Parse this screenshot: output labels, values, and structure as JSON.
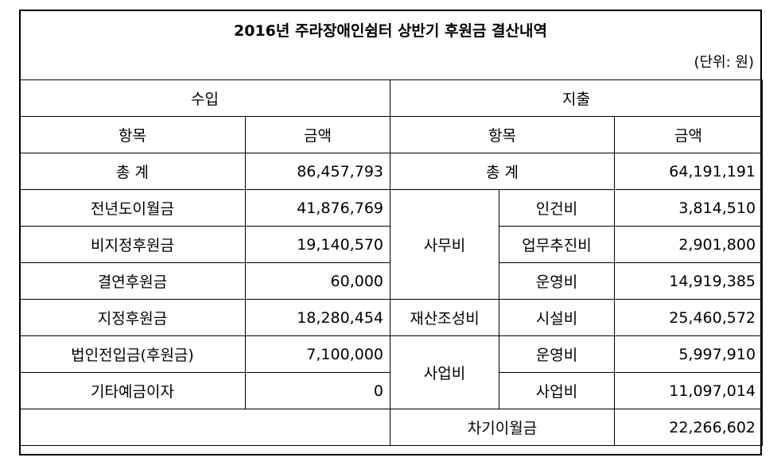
{
  "title": "2016년 주라장애인쉼터 상반기 후원금 결산내역",
  "unit": "(단위: 원)",
  "income_header": "수입",
  "expense_header": "지출",
  "col_item": "항목",
  "col_amount": "금액",
  "income": {
    "total_label": "총 계",
    "total_value": "86,457,793",
    "rows": [
      {
        "label": "전년도이월금",
        "value": "41,876,769"
      },
      {
        "label": "비지정후원금",
        "value": "19,140,570"
      },
      {
        "label": "결연후원금",
        "value": "60,000"
      },
      {
        "label": "지정후원금",
        "value": "18,280,454"
      },
      {
        "label": "법인전입금(후원금)",
        "value": "7,100,000"
      },
      {
        "label": "기타예금이자",
        "value": "0"
      }
    ]
  },
  "expense": {
    "total_label": "총 계",
    "total_value": "64,191,191",
    "groups": [
      {
        "name": "사무비",
        "items": [
          {
            "label": "인건비",
            "value": "3,814,510"
          },
          {
            "label": "업무추진비",
            "value": "2,901,800"
          },
          {
            "label": "운영비",
            "value": "14,919,385"
          }
        ]
      },
      {
        "name": "재산조성비",
        "items": [
          {
            "label": "시설비",
            "value": "25,460,572"
          }
        ]
      },
      {
        "name": "사업비",
        "items": [
          {
            "label": "운영비",
            "value": "5,997,910"
          },
          {
            "label": "사업비",
            "value": "11,097,014"
          }
        ]
      }
    ],
    "carryover_label": "차기이월금",
    "carryover_value": "22,266,602"
  }
}
